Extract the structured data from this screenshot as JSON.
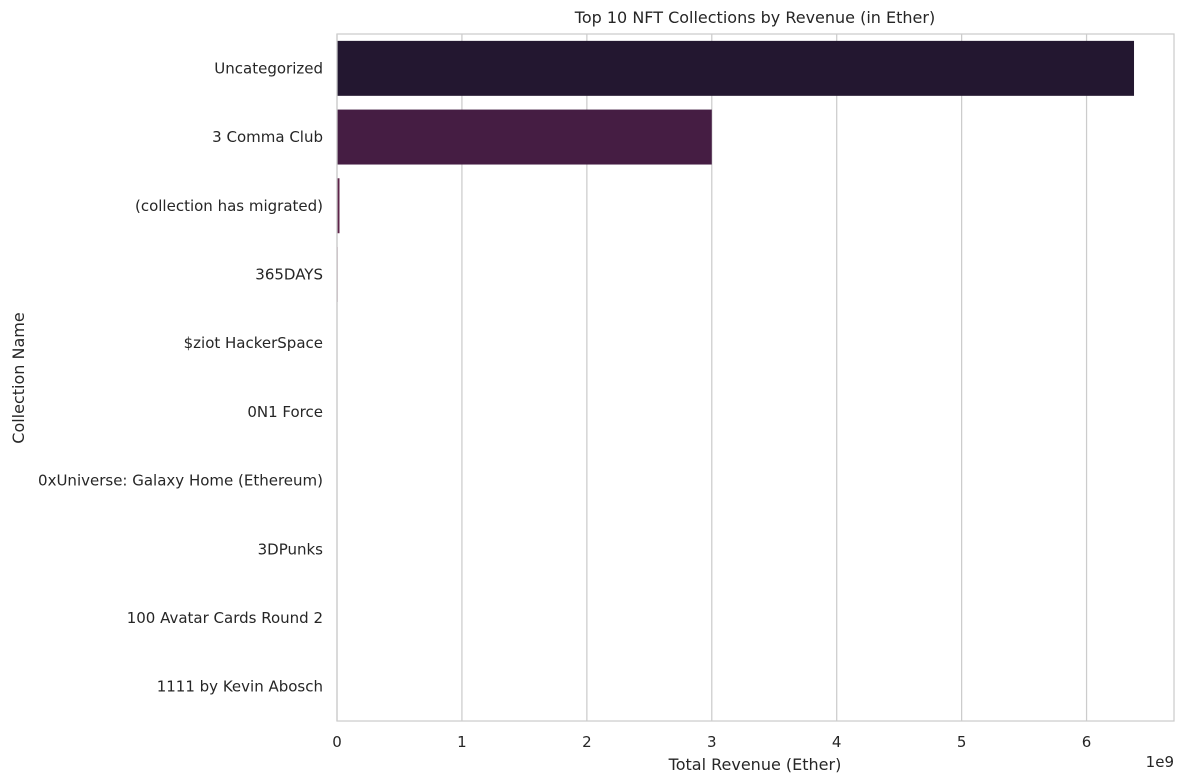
{
  "chart_data": {
    "type": "bar",
    "orientation": "horizontal",
    "title": "Top 10 NFT Collections by Revenue (in Ether)",
    "xlabel": "Total Revenue (Ether)",
    "ylabel": "Collection Name",
    "x_scale_label": "1e9",
    "xlim": [
      0,
      6.7
    ],
    "x_ticks": [
      0,
      1,
      2,
      3,
      4,
      5,
      6
    ],
    "x_tick_labels": [
      "0",
      "1",
      "2",
      "3",
      "4",
      "5",
      "6"
    ],
    "value_unit_multiplier": 1000000000,
    "grid": "vertical",
    "categories": [
      "Uncategorized",
      "3 Comma Club",
      "(collection has migrated)",
      "365DAYS",
      "$ziot HackerSpace",
      "0N1 Force",
      "0xUniverse: Galaxy Home (Ethereum)",
      "3DPunks",
      "100 Avatar Cards Round 2",
      "1111 by Kevin Abosch"
    ],
    "values": [
      6.38,
      3.0,
      0.02,
      0.005,
      0.004,
      0.003,
      0.003,
      0.002,
      0.002,
      0.002
    ],
    "colors": [
      "#231730",
      "#451d43",
      "#5d2349",
      "#6e2552",
      "#802a54",
      "#912e53",
      "#a3304f",
      "#b5334a",
      "#c43a44",
      "#d24a41"
    ]
  }
}
